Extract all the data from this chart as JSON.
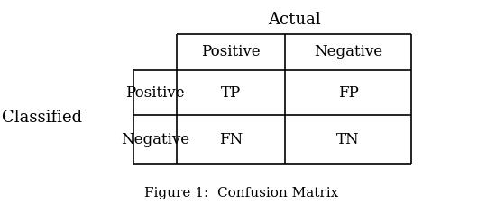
{
  "title": "Figure 1:  Confusion Matrix",
  "actual_label": "Actual",
  "classified_label": "Classified",
  "col_headers": [
    "Positive",
    "Negative"
  ],
  "row_headers": [
    "Positive",
    "Negative"
  ],
  "cell_values": [
    [
      "TP",
      "FP"
    ],
    [
      "FN",
      "TN"
    ]
  ],
  "bg_color": "#ffffff",
  "text_color": "#000000",
  "line_color": "#000000",
  "title_fontsize": 11,
  "header_fontsize": 12,
  "cell_fontsize": 12,
  "label_fontsize": 12,
  "actual_fontsize": 13,
  "classified_fontsize": 13,
  "figsize": [
    5.4,
    2.36
  ],
  "dpi": 100
}
